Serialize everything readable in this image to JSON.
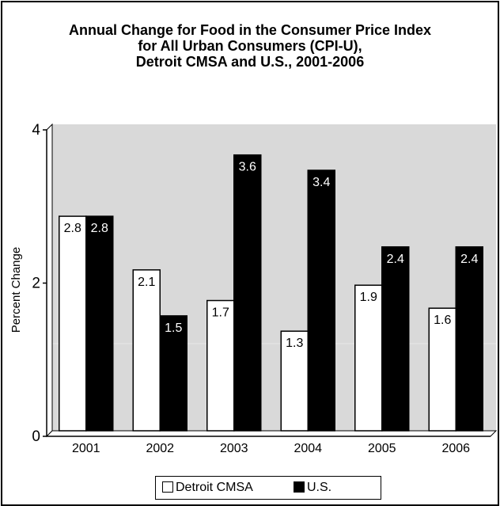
{
  "chart_data": {
    "type": "bar",
    "title_lines": [
      "Annual Change for Food in the Consumer Price Index",
      "for  All Urban Consumers (CPI-U),",
      "Detroit CMSA and U.S., 2001-2006"
    ],
    "xlabel": "",
    "ylabel": "Percent Change",
    "ylim": [
      0,
      4
    ],
    "yticks": [
      "0",
      "2",
      "4"
    ],
    "categories": [
      "2001",
      "2002",
      "2003",
      "2004",
      "2005",
      "2006"
    ],
    "series": [
      {
        "name": "Detroit CMSA",
        "values": [
          2.8,
          2.1,
          1.7,
          1.3,
          1.9,
          1.6
        ],
        "color": "#ffffff"
      },
      {
        "name": "U.S.",
        "values": [
          2.8,
          1.5,
          3.6,
          3.4,
          2.4,
          2.4
        ],
        "color": "#000000"
      }
    ],
    "data_labels": [
      [
        "2.8",
        "2.1",
        "1.7",
        "1.3",
        "1.9",
        "1.6"
      ],
      [
        "2.8",
        "1.5",
        "3.6",
        "3.4",
        "2.4",
        "2.4"
      ]
    ],
    "legend_position": "bottom",
    "grid": false,
    "plot_background": "#d9d9d9"
  }
}
